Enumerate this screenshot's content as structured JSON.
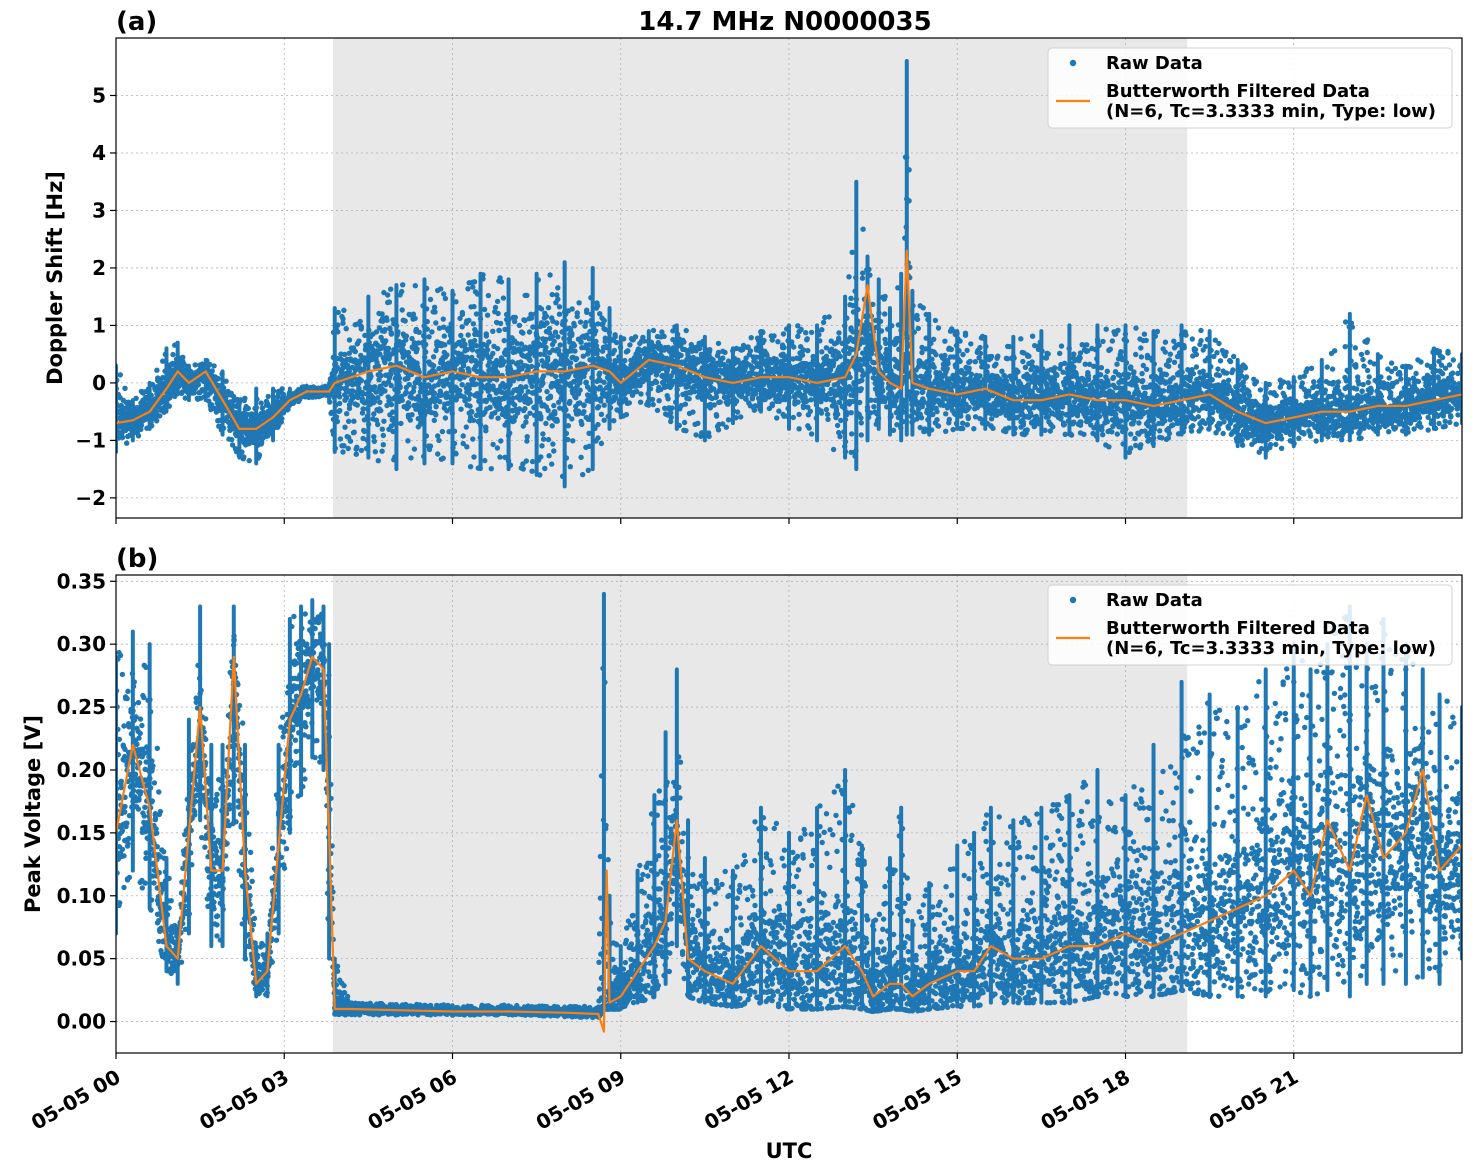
{
  "title": "14.7 MHz N0000035",
  "xlabel": "UTC",
  "x_ticks": [
    "05-05 00",
    "05-05 03",
    "05-05 06",
    "05-05 09",
    "05-05 12",
    "05-05 15",
    "05-05 18",
    "05-05 21"
  ],
  "shaded_region_hours": [
    3.87,
    19.1
  ],
  "colors": {
    "raw": "#1f77b4",
    "filtered": "#ff7f0e",
    "shade": "#e8e8e8",
    "grid": "#b0b0b0"
  },
  "legend": {
    "raw_label": "Raw Data",
    "filtered_label_line1": "Butterworth Filtered Data",
    "filtered_label_line2": "(N=6, Tc=3.3333 min, Type: low)",
    "placement": "upper right"
  },
  "chart_data": [
    {
      "panel": "(a)",
      "type": "scatter",
      "ylabel": "Doppler Shift [Hz]",
      "xlim_hours": [
        0,
        24
      ],
      "ylim": [
        -2.35,
        6.0
      ],
      "yticks": [
        -2,
        -1,
        0,
        1,
        2,
        3,
        4,
        5
      ],
      "ytick_labels": [
        "−2",
        "−1",
        "0",
        "1",
        "2",
        "3",
        "4",
        "5"
      ],
      "grid": true,
      "series": [
        {
          "name": "Raw Data",
          "kind": "scatter band (min/center/max envelope)",
          "x_hours": [
            0,
            0.3,
            0.6,
            0.9,
            1.1,
            1.3,
            1.6,
            1.9,
            2.2,
            2.5,
            2.8,
            3.1,
            3.4,
            3.8,
            3.9,
            4.5,
            5.0,
            5.5,
            6.0,
            6.5,
            7.0,
            7.5,
            8.0,
            8.5,
            8.8,
            9.0,
            9.5,
            10.0,
            10.5,
            11.0,
            11.5,
            12.0,
            12.5,
            13.0,
            13.2,
            13.4,
            13.6,
            13.8,
            14.0,
            14.1,
            14.2,
            14.5,
            15.0,
            15.5,
            16.0,
            16.5,
            17.0,
            17.5,
            18.0,
            18.5,
            19.0,
            19.5,
            20.0,
            20.5,
            21.0,
            21.5,
            22.0,
            22.5,
            23.0,
            23.5,
            24.0
          ],
          "center": [
            -0.7,
            -0.65,
            -0.5,
            -0.1,
            0.2,
            0.0,
            0.2,
            -0.3,
            -0.8,
            -0.8,
            -0.6,
            -0.3,
            -0.15,
            -0.15,
            0.0,
            0.2,
            0.3,
            0.1,
            0.2,
            0.1,
            0.1,
            0.2,
            0.2,
            0.3,
            0.2,
            0.0,
            0.4,
            0.3,
            0.1,
            0.0,
            0.1,
            0.1,
            0.0,
            0.1,
            0.5,
            0.8,
            0.2,
            0.0,
            -0.1,
            1.5,
            0.0,
            -0.1,
            -0.2,
            -0.1,
            -0.3,
            -0.3,
            -0.2,
            -0.3,
            -0.3,
            -0.4,
            -0.3,
            -0.2,
            -0.5,
            -0.7,
            -0.6,
            -0.5,
            -0.5,
            -0.4,
            -0.4,
            -0.3,
            -0.2
          ],
          "low": [
            -1.2,
            -1.0,
            -0.8,
            -0.5,
            -0.2,
            -0.3,
            -0.3,
            -0.9,
            -1.3,
            -1.4,
            -1.0,
            -0.4,
            -0.25,
            -0.3,
            -1.2,
            -1.3,
            -1.5,
            -1.4,
            -1.4,
            -1.5,
            -1.5,
            -1.6,
            -1.8,
            -1.5,
            -0.8,
            -0.6,
            -0.4,
            -0.8,
            -1.0,
            -0.7,
            -0.5,
            -0.8,
            -1.0,
            -1.3,
            -1.5,
            -1.0,
            -0.8,
            -0.9,
            -1.0,
            -0.9,
            -0.9,
            -0.9,
            -0.8,
            -0.8,
            -0.9,
            -0.9,
            -0.9,
            -1.0,
            -1.3,
            -1.1,
            -0.9,
            -0.8,
            -1.1,
            -1.3,
            -1.1,
            -1.0,
            -1.0,
            -0.9,
            -0.9,
            -0.8,
            -0.7
          ],
          "high": [
            0.3,
            -0.3,
            0.0,
            0.6,
            0.7,
            0.3,
            0.4,
            0.2,
            -0.3,
            -0.1,
            -0.1,
            -0.1,
            -0.05,
            -0.05,
            1.3,
            1.5,
            1.7,
            1.8,
            1.6,
            1.9,
            1.8,
            1.9,
            2.1,
            2.0,
            1.3,
            0.8,
            0.9,
            1.0,
            0.8,
            0.6,
            0.9,
            1.0,
            1.0,
            1.5,
            3.5,
            2.2,
            1.8,
            1.3,
            1.9,
            5.6,
            1.6,
            1.2,
            0.9,
            0.8,
            0.8,
            0.9,
            1.0,
            1.0,
            1.0,
            0.9,
            1.0,
            0.9,
            0.4,
            0.0,
            0.1,
            0.4,
            1.2,
            0.5,
            0.3,
            0.6,
            0.5
          ]
        },
        {
          "name": "Butterworth Filtered Data",
          "kind": "line",
          "x_hours": [
            0,
            0.3,
            0.6,
            0.9,
            1.1,
            1.3,
            1.6,
            1.9,
            2.2,
            2.5,
            2.8,
            3.1,
            3.4,
            3.8,
            3.9,
            4.5,
            5.0,
            5.5,
            6.0,
            6.5,
            7.0,
            7.5,
            8.0,
            8.5,
            8.8,
            9.0,
            9.5,
            10.0,
            10.5,
            11.0,
            11.5,
            12.0,
            12.5,
            13.0,
            13.2,
            13.4,
            13.6,
            13.8,
            14.0,
            14.1,
            14.2,
            14.5,
            15.0,
            15.5,
            16.0,
            16.5,
            17.0,
            17.5,
            18.0,
            18.5,
            19.0,
            19.5,
            20.0,
            20.5,
            21.0,
            21.5,
            22.0,
            22.5,
            23.0,
            23.5,
            24.0
          ],
          "values": [
            -0.7,
            -0.65,
            -0.5,
            -0.1,
            0.2,
            0.0,
            0.2,
            -0.3,
            -0.8,
            -0.8,
            -0.6,
            -0.3,
            -0.15,
            -0.15,
            0.0,
            0.2,
            0.3,
            0.1,
            0.2,
            0.1,
            0.1,
            0.2,
            0.2,
            0.3,
            0.2,
            0.0,
            0.4,
            0.3,
            0.1,
            0.0,
            0.1,
            0.1,
            0.0,
            0.1,
            0.5,
            1.7,
            0.2,
            0.0,
            -0.1,
            2.3,
            0.0,
            -0.1,
            -0.2,
            -0.1,
            -0.3,
            -0.3,
            -0.2,
            -0.3,
            -0.3,
            -0.4,
            -0.3,
            -0.2,
            -0.5,
            -0.7,
            -0.6,
            -0.5,
            -0.5,
            -0.4,
            -0.4,
            -0.3,
            -0.2
          ]
        }
      ]
    },
    {
      "panel": "(b)",
      "type": "scatter",
      "ylabel": "Peak Voltage [V]",
      "xlim_hours": [
        0,
        24
      ],
      "ylim": [
        -0.025,
        0.355
      ],
      "yticks": [
        0.0,
        0.05,
        0.1,
        0.15,
        0.2,
        0.25,
        0.3,
        0.35
      ],
      "ytick_labels": [
        "0.00",
        "0.05",
        "0.10",
        "0.15",
        "0.20",
        "0.25",
        "0.30",
        "0.35"
      ],
      "grid": true,
      "series": [
        {
          "name": "Raw Data",
          "kind": "scatter band (min/center/max envelope)",
          "x_hours": [
            0,
            0.3,
            0.6,
            0.9,
            1.1,
            1.3,
            1.5,
            1.7,
            1.9,
            2.1,
            2.3,
            2.5,
            2.7,
            2.9,
            3.1,
            3.3,
            3.5,
            3.7,
            3.8,
            3.9,
            4.2,
            5.0,
            6.0,
            7.0,
            8.0,
            8.6,
            8.7,
            8.8,
            9.0,
            9.3,
            9.6,
            9.8,
            10.0,
            10.2,
            10.5,
            11.0,
            11.5,
            12.0,
            12.5,
            13.0,
            13.3,
            13.5,
            13.8,
            14.0,
            14.2,
            14.5,
            15.0,
            15.3,
            15.6,
            16.0,
            16.5,
            17.0,
            17.5,
            18.0,
            18.5,
            19.0,
            19.5,
            20.0,
            20.5,
            21.0,
            21.3,
            21.6,
            22.0,
            22.3,
            22.6,
            23.0,
            23.3,
            23.6,
            24.0
          ],
          "center": [
            0.15,
            0.22,
            0.17,
            0.06,
            0.05,
            0.15,
            0.24,
            0.12,
            0.12,
            0.28,
            0.12,
            0.03,
            0.04,
            0.14,
            0.24,
            0.26,
            0.29,
            0.28,
            0.15,
            0.01,
            0.01,
            0.009,
            0.008,
            0.008,
            0.007,
            0.006,
            0.03,
            0.015,
            0.02,
            0.04,
            0.06,
            0.08,
            0.15,
            0.05,
            0.04,
            0.03,
            0.06,
            0.04,
            0.04,
            0.05,
            0.04,
            0.02,
            0.03,
            0.03,
            0.02,
            0.03,
            0.04,
            0.04,
            0.06,
            0.05,
            0.05,
            0.06,
            0.06,
            0.07,
            0.06,
            0.07,
            0.08,
            0.09,
            0.1,
            0.12,
            0.1,
            0.14,
            0.12,
            0.15,
            0.13,
            0.14,
            0.16,
            0.12,
            0.13
          ],
          "low": [
            0.07,
            0.12,
            0.09,
            0.04,
            0.03,
            0.07,
            0.16,
            0.06,
            0.06,
            0.16,
            0.05,
            0.02,
            0.02,
            0.07,
            0.15,
            0.18,
            0.21,
            0.2,
            0.05,
            0.006,
            0.005,
            0.005,
            0.005,
            0.005,
            0.004,
            0.003,
            0.01,
            0.01,
            0.01,
            0.015,
            0.02,
            0.03,
            0.06,
            0.02,
            0.015,
            0.012,
            0.015,
            0.01,
            0.01,
            0.012,
            0.01,
            0.008,
            0.01,
            0.01,
            0.008,
            0.01,
            0.012,
            0.012,
            0.015,
            0.015,
            0.015,
            0.015,
            0.02,
            0.02,
            0.02,
            0.025,
            0.02,
            0.02,
            0.02,
            0.025,
            0.02,
            0.025,
            0.02,
            0.03,
            0.03,
            0.03,
            0.035,
            0.03,
            0.05
          ],
          "high": [
            0.29,
            0.31,
            0.3,
            0.13,
            0.07,
            0.24,
            0.33,
            0.22,
            0.22,
            0.33,
            0.22,
            0.06,
            0.07,
            0.22,
            0.32,
            0.33,
            0.335,
            0.33,
            0.3,
            0.05,
            0.015,
            0.014,
            0.013,
            0.013,
            0.012,
            0.012,
            0.34,
            0.1,
            0.06,
            0.12,
            0.18,
            0.23,
            0.28,
            0.16,
            0.13,
            0.12,
            0.17,
            0.15,
            0.17,
            0.2,
            0.14,
            0.08,
            0.13,
            0.17,
            0.08,
            0.11,
            0.14,
            0.15,
            0.17,
            0.16,
            0.17,
            0.18,
            0.2,
            0.18,
            0.22,
            0.27,
            0.26,
            0.25,
            0.28,
            0.3,
            0.28,
            0.3,
            0.33,
            0.3,
            0.32,
            0.3,
            0.28,
            0.26,
            0.25
          ]
        },
        {
          "name": "Butterworth Filtered Data",
          "kind": "line",
          "x_hours": [
            0,
            0.3,
            0.6,
            0.9,
            1.1,
            1.3,
            1.5,
            1.7,
            1.9,
            2.1,
            2.3,
            2.5,
            2.7,
            2.9,
            3.1,
            3.3,
            3.5,
            3.7,
            3.8,
            3.9,
            4.2,
            5.0,
            6.0,
            7.0,
            8.0,
            8.6,
            8.7,
            8.75,
            8.8,
            9.0,
            9.3,
            9.6,
            9.8,
            10.0,
            10.2,
            10.5,
            11.0,
            11.5,
            12.0,
            12.5,
            13.0,
            13.3,
            13.5,
            13.8,
            14.0,
            14.2,
            14.5,
            15.0,
            15.3,
            15.6,
            16.0,
            16.5,
            17.0,
            17.5,
            18.0,
            18.5,
            19.0,
            19.5,
            20.0,
            20.5,
            21.0,
            21.3,
            21.6,
            22.0,
            22.3,
            22.6,
            23.0,
            23.3,
            23.6,
            24.0
          ],
          "values": [
            0.15,
            0.22,
            0.17,
            0.06,
            0.05,
            0.15,
            0.25,
            0.12,
            0.12,
            0.29,
            0.12,
            0.03,
            0.04,
            0.14,
            0.24,
            0.26,
            0.29,
            0.28,
            0.15,
            0.01,
            0.01,
            0.009,
            0.008,
            0.008,
            0.007,
            0.006,
            -0.008,
            0.12,
            0.015,
            0.02,
            0.04,
            0.06,
            0.08,
            0.16,
            0.05,
            0.04,
            0.03,
            0.06,
            0.04,
            0.04,
            0.06,
            0.04,
            0.02,
            0.03,
            0.03,
            0.02,
            0.03,
            0.04,
            0.04,
            0.06,
            0.05,
            0.05,
            0.06,
            0.06,
            0.07,
            0.06,
            0.07,
            0.08,
            0.09,
            0.1,
            0.12,
            0.1,
            0.16,
            0.12,
            0.18,
            0.13,
            0.15,
            0.2,
            0.12,
            0.14
          ]
        }
      ]
    }
  ]
}
